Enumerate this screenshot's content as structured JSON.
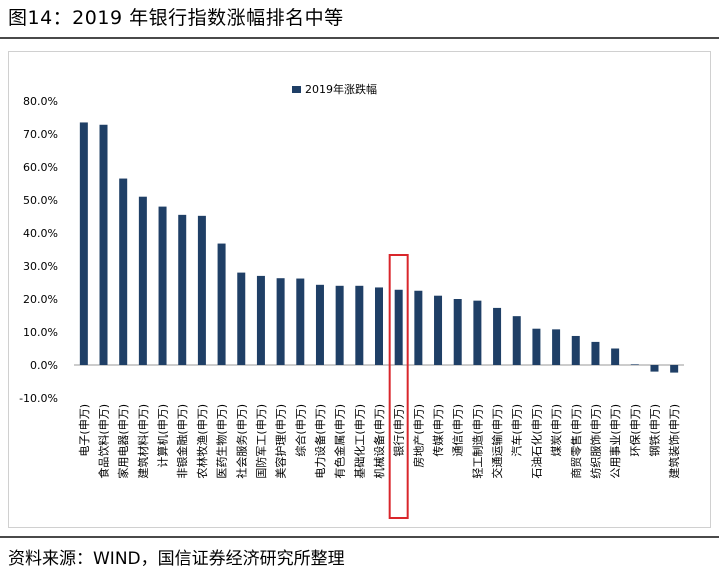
{
  "figure": {
    "title": "图14：2019 年银行指数涨幅排名中等",
    "source": "资料来源：WIND，国信证券经济研究所整理"
  },
  "chart_data": {
    "type": "bar",
    "series": [
      {
        "name": "2019年涨跌幅",
        "color": "#1f3f66",
        "values": [
          73.5,
          72.8,
          56.5,
          51.0,
          48.0,
          45.5,
          45.2,
          36.8,
          28.0,
          27.0,
          26.3,
          26.2,
          24.3,
          24.0,
          24.0,
          23.5,
          22.8,
          22.5,
          21.0,
          20.0,
          19.5,
          17.3,
          14.8,
          11.0,
          10.8,
          8.8,
          7.0,
          5.0,
          0.2,
          -2.0,
          -2.3
        ]
      }
    ],
    "categories": [
      "电子(申万)",
      "食品饮料(申万)",
      "家用电器(申万)",
      "建筑材料(申万)",
      "计算机(申万)",
      "非银金融(申万)",
      "农林牧渔(申万)",
      "医药生物(申万)",
      "社会服务(申万)",
      "国防军工(申万)",
      "美容护理(申万)",
      "综合(申万)",
      "电力设备(申万)",
      "有色金属(申万)",
      "基础化工(申万)",
      "机械设备(申万)",
      "银行(申万)",
      "房地产(申万)",
      "传媒(申万)",
      "通信(申万)",
      "轻工制造(申万)",
      "交通运输(申万)",
      "汽车(申万)",
      "石油石化(申万)",
      "煤炭(申万)",
      "商贸零售(申万)",
      "纺织服饰(申万)",
      "公用事业(申万)",
      "环保(申万)",
      "钢铁(申万)",
      "建筑装饰(申万)"
    ],
    "y_ticks": [
      "80.0%",
      "70.0%",
      "60.0%",
      "50.0%",
      "40.0%",
      "30.0%",
      "20.0%",
      "10.0%",
      "0.0%",
      "-10.0%"
    ],
    "ylim": [
      -10,
      80
    ],
    "y_unit": "%",
    "legend_position": "top-center",
    "grid": false,
    "highlight": {
      "category": "银行(申万)",
      "color": "#d9262b"
    }
  }
}
